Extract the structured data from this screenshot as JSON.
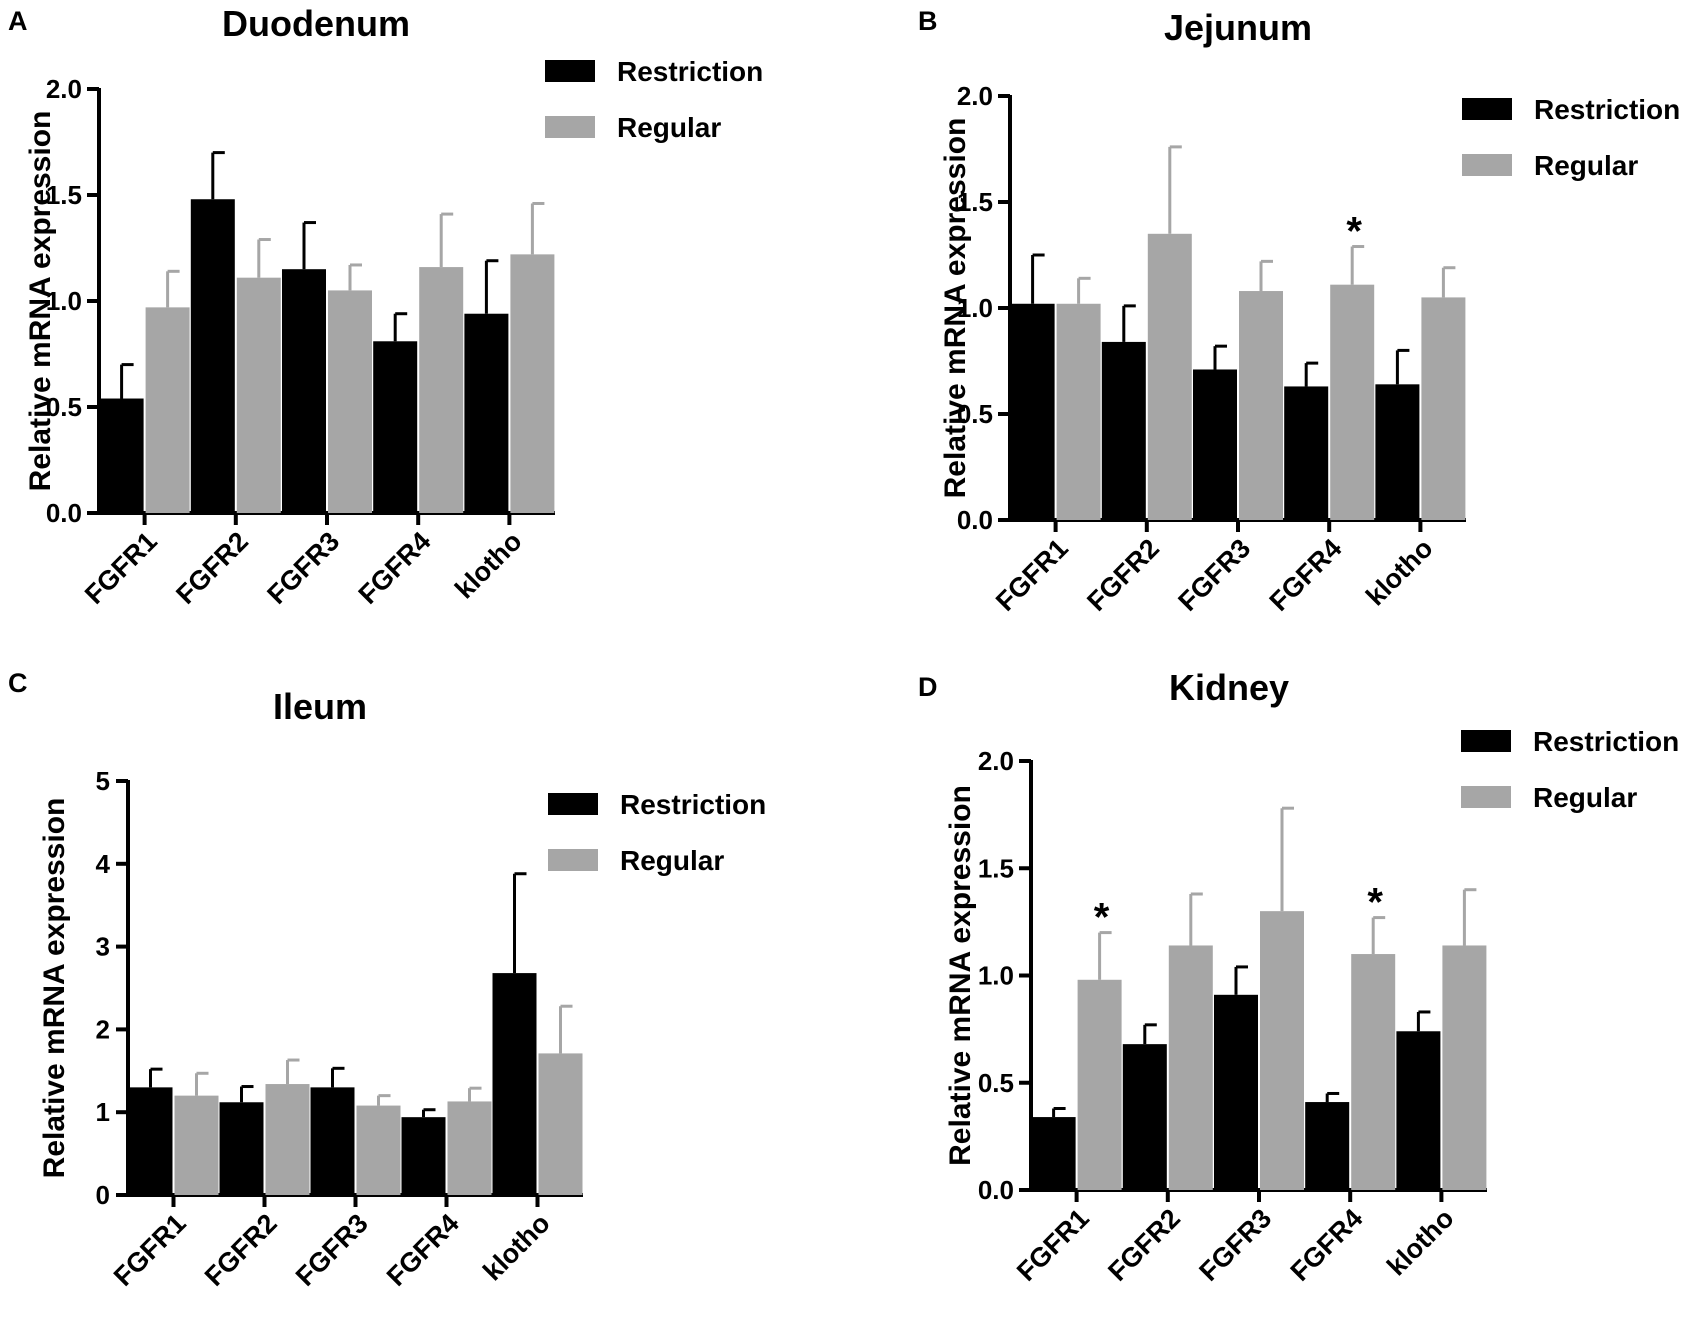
{
  "colors": {
    "restriction": "#000000",
    "regular": "#a6a6a6",
    "axis": "#000000",
    "background": "#ffffff"
  },
  "chart_data": [
    {
      "panel": "A",
      "type": "bar",
      "title": "Duodenum",
      "xlabel": "",
      "ylabel": "Relative mRNA expression",
      "categories": [
        "FGFR1",
        "FGFR2",
        "FGFR3",
        "FGFR4",
        "klotho"
      ],
      "ylim": [
        0,
        2.0
      ],
      "yticks": [
        0,
        0.5,
        1.0,
        1.5,
        2.0
      ],
      "ytick_labels": [
        "0.0",
        "0.5",
        "1.0",
        "1.5",
        "2.0"
      ],
      "series": [
        {
          "name": "Restriction",
          "values": [
            0.54,
            1.48,
            1.15,
            0.81,
            0.94
          ],
          "errors": [
            0.16,
            0.22,
            0.22,
            0.13,
            0.25
          ]
        },
        {
          "name": "Regular",
          "values": [
            0.97,
            1.11,
            1.05,
            1.16,
            1.22
          ],
          "errors": [
            0.17,
            0.18,
            0.12,
            0.25,
            0.24
          ]
        }
      ],
      "annotations": [],
      "legend": "top-right"
    },
    {
      "panel": "B",
      "type": "bar",
      "title": "Jejunum",
      "xlabel": "",
      "ylabel": "Relative mRNA expression",
      "categories": [
        "FGFR1",
        "FGFR2",
        "FGFR3",
        "FGFR4",
        "klotho"
      ],
      "ylim": [
        0,
        2.0
      ],
      "yticks": [
        0,
        0.5,
        1.0,
        1.5,
        2.0
      ],
      "ytick_labels": [
        "0.0",
        "0.5",
        "1.0",
        "1.5",
        "2.0"
      ],
      "series": [
        {
          "name": "Restriction",
          "values": [
            1.02,
            0.84,
            0.71,
            0.63,
            0.64
          ],
          "errors": [
            0.23,
            0.17,
            0.11,
            0.11,
            0.16
          ]
        },
        {
          "name": "Regular",
          "values": [
            1.02,
            1.35,
            1.08,
            1.11,
            1.05
          ],
          "errors": [
            0.12,
            0.41,
            0.14,
            0.18,
            0.14
          ]
        }
      ],
      "annotations": [
        {
          "text": "*",
          "category": "FGFR4",
          "series": "Regular"
        }
      ],
      "legend": "top-right"
    },
    {
      "panel": "C",
      "type": "bar",
      "title": "Ileum",
      "xlabel": "",
      "ylabel": "Relative mRNA expression",
      "categories": [
        "FGFR1",
        "FGFR2",
        "FGFR3",
        "FGFR4",
        "klotho"
      ],
      "ylim": [
        0,
        5
      ],
      "yticks": [
        0,
        1,
        2,
        3,
        4,
        5
      ],
      "ytick_labels": [
        "0",
        "1",
        "2",
        "3",
        "4",
        "5"
      ],
      "series": [
        {
          "name": "Restriction",
          "values": [
            1.3,
            1.12,
            1.3,
            0.94,
            2.68
          ],
          "errors": [
            0.22,
            0.19,
            0.23,
            0.09,
            1.2
          ]
        },
        {
          "name": "Regular",
          "values": [
            1.2,
            1.34,
            1.08,
            1.13,
            1.71
          ],
          "errors": [
            0.27,
            0.29,
            0.12,
            0.16,
            0.57
          ]
        }
      ],
      "annotations": [],
      "legend": "top-right"
    },
    {
      "panel": "D",
      "type": "bar",
      "title": "Kidney",
      "xlabel": "",
      "ylabel": "Relative mRNA expression",
      "categories": [
        "FGFR1",
        "FGFR2",
        "FGFR3",
        "FGFR4",
        "klotho"
      ],
      "ylim": [
        0,
        2.0
      ],
      "yticks": [
        0,
        0.5,
        1.0,
        1.5,
        2.0
      ],
      "ytick_labels": [
        "0.0",
        "0.5",
        "1.0",
        "1.5",
        "2.0"
      ],
      "series": [
        {
          "name": "Restriction",
          "values": [
            0.34,
            0.68,
            0.91,
            0.41,
            0.74
          ],
          "errors": [
            0.04,
            0.09,
            0.13,
            0.04,
            0.09
          ]
        },
        {
          "name": "Regular",
          "values": [
            0.98,
            1.14,
            1.3,
            1.1,
            1.14
          ],
          "errors": [
            0.22,
            0.24,
            0.48,
            0.17,
            0.26
          ]
        }
      ],
      "annotations": [
        {
          "text": "*",
          "category": "FGFR1",
          "series": "Regular"
        },
        {
          "text": "*",
          "category": "FGFR4",
          "series": "Regular"
        }
      ],
      "legend": "top-right"
    }
  ]
}
